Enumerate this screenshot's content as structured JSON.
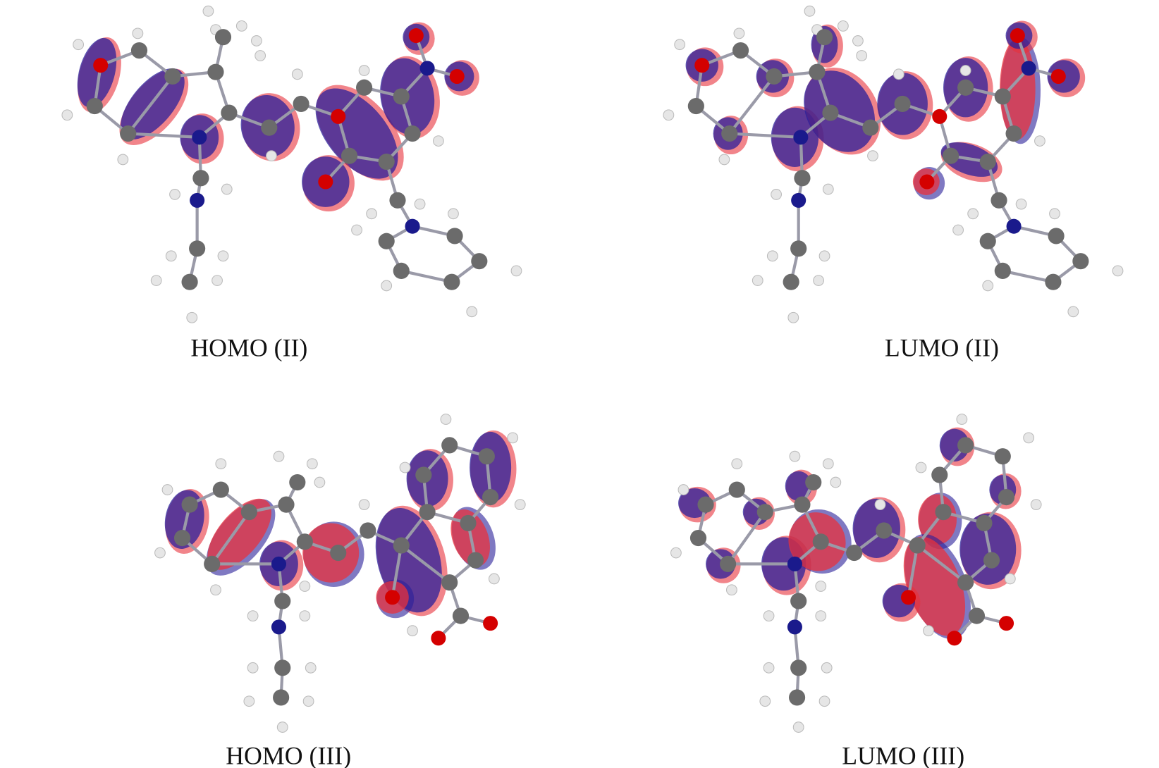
{
  "panels": [
    {
      "id": "homo-ii",
      "label": "HOMO (II)"
    },
    {
      "id": "lumo-ii",
      "label": "LUMO (II)"
    },
    {
      "id": "homo-iii",
      "label": "HOMO (III)"
    },
    {
      "id": "lumo-iii",
      "label": "LUMO (III)"
    }
  ],
  "colors": {
    "positive_lobe": "#2a1f99",
    "negative_lobe": "#e8323c",
    "carbon": "#6b6b6b",
    "hydrogen": "#e6e6e6",
    "nitrogen": "#1a1a8c",
    "oxygen": "#d40000",
    "bond": "#9a9aa8"
  }
}
